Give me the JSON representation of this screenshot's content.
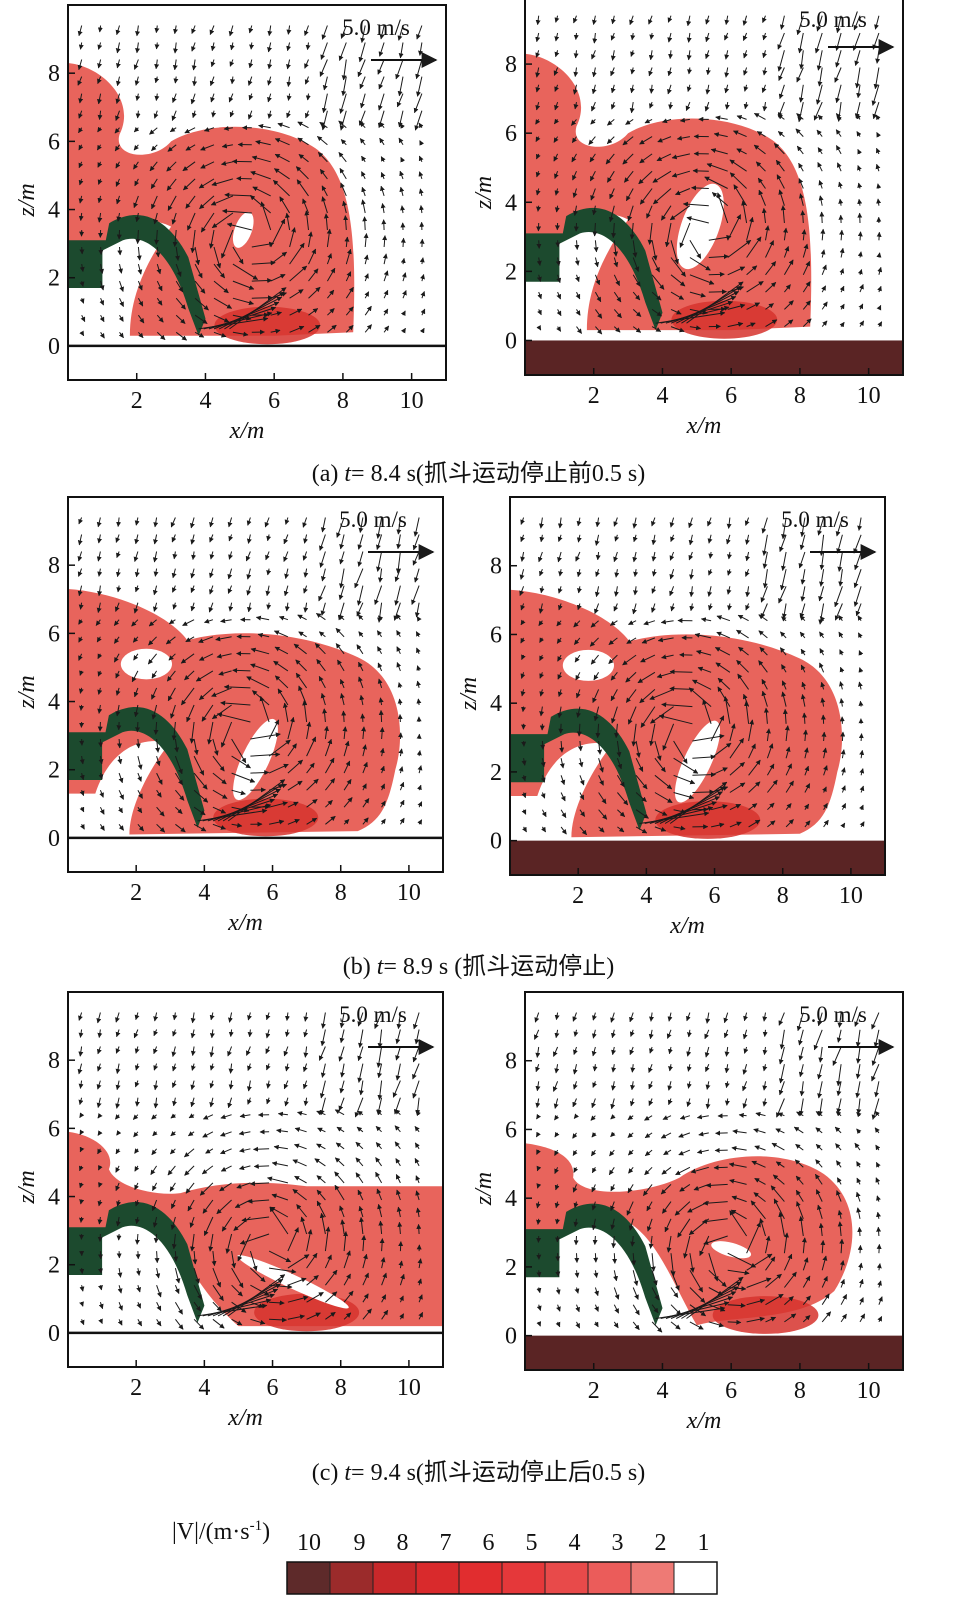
{
  "chart_data": {
    "type": "vector_field_contour",
    "description_of_content": "Velocity vectors and velocity magnitude contours near a grab bucket, two columns per row",
    "panels": [
      {
        "row": "a",
        "column": 1,
        "bottom": "wall",
        "xlim": [
          0,
          11
        ],
        "ylim": [
          -1,
          10
        ],
        "xlabel": "x/m",
        "ylabel": "z/m",
        "x_ticks": [
          2,
          4,
          6,
          8,
          10
        ],
        "y_ticks": [
          0,
          2,
          4,
          6,
          8
        ],
        "reference_vector": "5.0 m/s"
      },
      {
        "row": "a",
        "column": 2,
        "bottom": "sediment",
        "xlim": [
          0,
          11
        ],
        "ylim": [
          -1,
          10
        ],
        "xlabel": "x/m",
        "ylabel": "z/m",
        "x_ticks": [
          2,
          4,
          6,
          8,
          10
        ],
        "y_ticks": [
          0,
          2,
          4,
          6,
          8
        ],
        "reference_vector": "5.0 m/s"
      },
      {
        "row": "b",
        "column": 1,
        "bottom": "wall",
        "xlim": [
          0,
          11
        ],
        "ylim": [
          -1,
          10
        ],
        "xlabel": "x/m",
        "ylabel": "z/m",
        "x_ticks": [
          2,
          4,
          6,
          8,
          10
        ],
        "y_ticks": [
          0,
          2,
          4,
          6,
          8
        ],
        "reference_vector": "5.0 m/s"
      },
      {
        "row": "b",
        "column": 2,
        "bottom": "sediment",
        "xlim": [
          0,
          11
        ],
        "ylim": [
          -1,
          10
        ],
        "xlabel": "x/m",
        "ylabel": "z/m",
        "x_ticks": [
          2,
          4,
          6,
          8,
          10
        ],
        "y_ticks": [
          0,
          2,
          4,
          6,
          8
        ],
        "reference_vector": "5.0 m/s"
      },
      {
        "row": "c",
        "column": 1,
        "bottom": "wall",
        "xlim": [
          0,
          11
        ],
        "ylim": [
          -1,
          10
        ],
        "xlabel": "x/m",
        "ylabel": "z/m",
        "x_ticks": [
          2,
          4,
          6,
          8,
          10
        ],
        "y_ticks": [
          0,
          2,
          4,
          6,
          8
        ],
        "reference_vector": "5.0 m/s"
      },
      {
        "row": "c",
        "column": 2,
        "bottom": "sediment",
        "xlim": [
          0,
          11
        ],
        "ylim": [
          -1,
          10
        ],
        "xlabel": "x/m",
        "ylabel": "z/m",
        "x_ticks": [
          2,
          4,
          6,
          8,
          10
        ],
        "y_ticks": [
          0,
          2,
          4,
          6,
          8
        ],
        "reference_vector": "5.0 m/s"
      }
    ],
    "captions": {
      "a": {
        "prefix": "(a) ",
        "t": "t",
        "rest": "= 8.4 s(抓斗运动停止前0.5 s)"
      },
      "b": {
        "prefix": "(b) ",
        "t": "t",
        "rest": "= 8.9 s (抓斗运动停止)"
      },
      "c": {
        "prefix": "(c) ",
        "t": "t",
        "rest": "= 9.4 s(抓斗运动停止后0.5 s)"
      }
    },
    "legend": {
      "title_main": "|V|/(m·s",
      "title_sup": "-1",
      "title_end": ")",
      "levels": [
        10,
        9,
        8,
        7,
        6,
        5,
        4,
        3,
        2,
        1
      ],
      "colors": [
        "#5e2a2a",
        "#9b2b2b",
        "#c8282a",
        "#d92a2c",
        "#e12d2f",
        "#e5383a",
        "#e84a4a",
        "#eb5c5a",
        "#ee7a75",
        "#ffffff"
      ]
    },
    "colors": {
      "plume": "#e6574e",
      "plume_core": "#d6332d",
      "bucket": "#1c4a2e",
      "sediment": "#5a2424",
      "arrow": "#1a1a1a"
    }
  }
}
